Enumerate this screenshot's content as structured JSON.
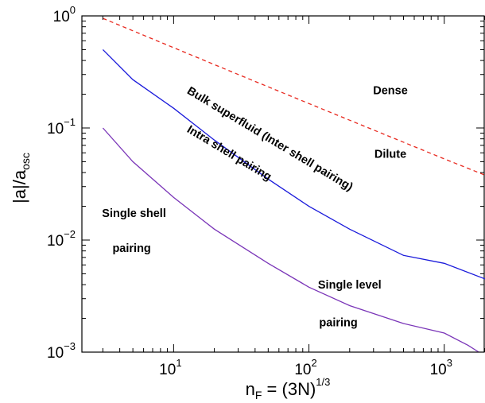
{
  "chart_data": {
    "type": "line",
    "title": "",
    "xlabel": {
      "base": "n",
      "sub": "F",
      "mid": " = (3N)",
      "sup": "1/3"
    },
    "ylabel": {
      "base": "|a|/a",
      "sub": "osc"
    },
    "xscale": "log",
    "yscale": "log",
    "xlim": [
      2.1,
      2000
    ],
    "ylim": [
      0.001,
      1
    ],
    "grid": false,
    "legend": "none",
    "x_ticks": [
      {
        "value": 10,
        "base": "10",
        "exp": "1"
      },
      {
        "value": 100,
        "base": "10",
        "exp": "2"
      },
      {
        "value": 1000,
        "base": "10",
        "exp": "3"
      }
    ],
    "y_ticks": [
      {
        "value": 1,
        "base": "10",
        "exp": "0"
      },
      {
        "value": 0.1,
        "base": "10",
        "exp": "−1"
      },
      {
        "value": 0.01,
        "base": "10",
        "exp": "−2"
      },
      {
        "value": 0.001,
        "base": "10",
        "exp": "−3"
      }
    ],
    "series": [
      {
        "color": "#e8281e",
        "dash": true,
        "x": [
          3,
          10,
          30,
          100,
          300,
          1000,
          2000
        ],
        "y": [
          0.95,
          0.52,
          0.3,
          0.165,
          0.096,
          0.053,
          0.038
        ]
      },
      {
        "color": "#1a1adb",
        "dash": false,
        "x": [
          3,
          5,
          10,
          20,
          50,
          100,
          200,
          500,
          1000,
          2000
        ],
        "y": [
          0.5,
          0.27,
          0.15,
          0.078,
          0.035,
          0.02,
          0.0125,
          0.0073,
          0.0062,
          0.0045
        ]
      },
      {
        "color": "#7a35b8",
        "dash": false,
        "x": [
          3,
          5,
          10,
          20,
          50,
          100,
          200,
          500,
          1000,
          1500,
          1800
        ],
        "y": [
          0.1,
          0.05,
          0.024,
          0.0125,
          0.0062,
          0.0038,
          0.0026,
          0.0018,
          0.00148,
          0.00115,
          0.001
        ]
      }
    ],
    "annotations": [
      {
        "text": "Dense",
        "x": 400,
        "y": 0.2,
        "rotate": 0
      },
      {
        "text": "Dilute",
        "x": 400,
        "y": 0.054,
        "rotate": 0
      },
      {
        "text": "Bulk superfluid (Inter shell pairing)",
        "x": 50,
        "y": 0.075,
        "rotate": 31
      },
      {
        "text": "Intra shell pairing",
        "x": 25,
        "y": 0.056,
        "rotate": 31
      },
      {
        "text": "Single shell",
        "x": 5.1,
        "y": 0.016,
        "rotate": 0
      },
      {
        "text": "pairing",
        "x": 4.9,
        "y": 0.0078,
        "rotate": 0
      },
      {
        "text": "Single level",
        "x": 200,
        "y": 0.0037,
        "rotate": 0
      },
      {
        "text": "pairing",
        "x": 165,
        "y": 0.0017,
        "rotate": 0
      }
    ]
  }
}
